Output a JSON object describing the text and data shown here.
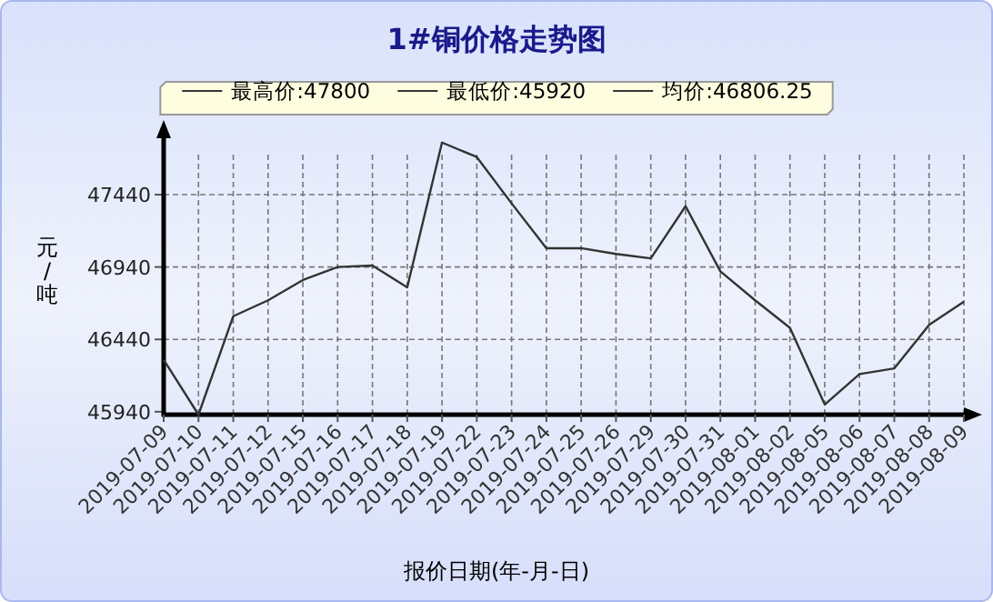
{
  "chart_data": {
    "type": "line",
    "title": "1#铜价格走势图",
    "xlabel": "报价日期(年-月-日)",
    "ylabel": "元/吨",
    "annotations": [
      "最高价:47800",
      "最低价:45920",
      "均价:46806.25"
    ],
    "categories": [
      "2019-07-09",
      "2019-07-10",
      "2019-07-11",
      "2019-07-12",
      "2019-07-15",
      "2019-07-16",
      "2019-07-17",
      "2019-07-18",
      "2019-07-19",
      "2019-07-22",
      "2019-07-23",
      "2019-07-24",
      "2019-07-25",
      "2019-07-26",
      "2019-07-29",
      "2019-07-30",
      "2019-07-31",
      "2019-08-01",
      "2019-08-02",
      "2019-08-05",
      "2019-08-06",
      "2019-08-07",
      "2019-08-08",
      "2019-08-09"
    ],
    "series": [
      {
        "color": "#333333",
        "values": [
          46300,
          45920,
          46600,
          46710,
          46850,
          46940,
          46950,
          46800,
          47800,
          47700,
          47380,
          47070,
          47070,
          47030,
          47000,
          47360,
          46910,
          46710,
          46520,
          45990,
          46200,
          46240,
          46540,
          46700
        ]
      }
    ],
    "ylim": [
      45920,
      47880
    ],
    "yticks": [
      45940,
      46440,
      46940,
      47440
    ],
    "grid": true,
    "marker": "none",
    "line_style": "solid"
  }
}
